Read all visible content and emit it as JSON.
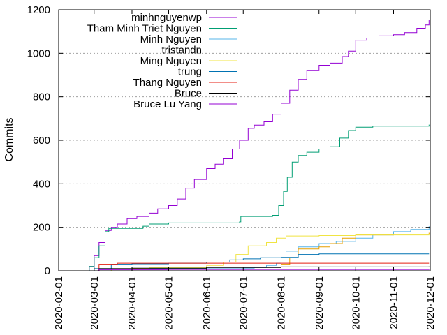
{
  "chart_data": {
    "type": "line",
    "title": "",
    "xlabel": "",
    "ylabel": "Commits",
    "ylim": [
      0,
      1200
    ],
    "yticks": [
      0,
      200,
      400,
      600,
      800,
      1000,
      1200
    ],
    "xlim": [
      "2020-02-01",
      "2020-12-01"
    ],
    "xticks": [
      "2020-02-01",
      "2020-03-01",
      "2020-04-01",
      "2020-05-01",
      "2020-06-01",
      "2020-07-01",
      "2020-08-01",
      "2020-09-01",
      "2020-10-01",
      "2020-11-01",
      "2020-12-01"
    ],
    "grid": {
      "horizontal": true,
      "vertical": false,
      "style": "dotted"
    },
    "legend": "top-left",
    "series": [
      {
        "name": "minhnguyenwp",
        "color": "#9400d3",
        "points": [
          [
            "2020-02-22",
            0
          ],
          [
            "2020-02-26",
            20
          ],
          [
            "2020-03-01",
            70
          ],
          [
            "2020-03-05",
            130
          ],
          [
            "2020-03-10",
            185
          ],
          [
            "2020-03-15",
            200
          ],
          [
            "2020-03-20",
            215
          ],
          [
            "2020-03-28",
            240
          ],
          [
            "2020-04-05",
            250
          ],
          [
            "2020-04-15",
            265
          ],
          [
            "2020-04-22",
            285
          ],
          [
            "2020-05-01",
            300
          ],
          [
            "2020-05-08",
            330
          ],
          [
            "2020-05-15",
            380
          ],
          [
            "2020-05-22",
            420
          ],
          [
            "2020-06-01",
            470
          ],
          [
            "2020-06-08",
            490
          ],
          [
            "2020-06-15",
            515
          ],
          [
            "2020-06-22",
            560
          ],
          [
            "2020-06-28",
            600
          ],
          [
            "2020-07-05",
            655
          ],
          [
            "2020-07-10",
            670
          ],
          [
            "2020-07-18",
            685
          ],
          [
            "2020-07-25",
            720
          ],
          [
            "2020-08-01",
            770
          ],
          [
            "2020-08-08",
            830
          ],
          [
            "2020-08-15",
            880
          ],
          [
            "2020-08-22",
            920
          ],
          [
            "2020-09-01",
            945
          ],
          [
            "2020-09-10",
            955
          ],
          [
            "2020-09-20",
            985
          ],
          [
            "2020-09-25",
            1010
          ],
          [
            "2020-10-01",
            1060
          ],
          [
            "2020-10-10",
            1070
          ],
          [
            "2020-10-20",
            1080
          ],
          [
            "2020-11-01",
            1085
          ],
          [
            "2020-11-10",
            1095
          ],
          [
            "2020-11-20",
            1115
          ],
          [
            "2020-11-27",
            1130
          ],
          [
            "2020-11-30",
            1155
          ]
        ]
      },
      {
        "name": "Tham Minh Triet Nguyen",
        "color": "#009e73",
        "points": [
          [
            "2020-02-22",
            0
          ],
          [
            "2020-02-26",
            20
          ],
          [
            "2020-03-01",
            60
          ],
          [
            "2020-03-05",
            115
          ],
          [
            "2020-03-10",
            180
          ],
          [
            "2020-03-13",
            195
          ],
          [
            "2020-04-01",
            195
          ],
          [
            "2020-04-10",
            205
          ],
          [
            "2020-04-15",
            215
          ],
          [
            "2020-05-01",
            220
          ],
          [
            "2020-06-01",
            220
          ],
          [
            "2020-06-28",
            225
          ],
          [
            "2020-06-29",
            250
          ],
          [
            "2020-07-25",
            255
          ],
          [
            "2020-07-30",
            300
          ],
          [
            "2020-08-03",
            365
          ],
          [
            "2020-08-06",
            430
          ],
          [
            "2020-08-10",
            500
          ],
          [
            "2020-08-15",
            530
          ],
          [
            "2020-08-22",
            545
          ],
          [
            "2020-09-01",
            560
          ],
          [
            "2020-09-10",
            570
          ],
          [
            "2020-09-18",
            610
          ],
          [
            "2020-09-25",
            645
          ],
          [
            "2020-10-01",
            660
          ],
          [
            "2020-10-15",
            665
          ],
          [
            "2020-11-01",
            665
          ],
          [
            "2020-11-30",
            672
          ]
        ]
      },
      {
        "name": "Minh Nguyen",
        "color": "#56b4e9",
        "points": [
          [
            "2020-03-01",
            0
          ],
          [
            "2020-03-15",
            10
          ],
          [
            "2020-07-01",
            12
          ],
          [
            "2020-07-10",
            15
          ],
          [
            "2020-07-20",
            25
          ],
          [
            "2020-07-28",
            35
          ],
          [
            "2020-08-01",
            60
          ],
          [
            "2020-08-05",
            90
          ],
          [
            "2020-08-15",
            110
          ],
          [
            "2020-09-01",
            125
          ],
          [
            "2020-09-15",
            135
          ],
          [
            "2020-10-01",
            150
          ],
          [
            "2020-10-15",
            165
          ],
          [
            "2020-11-01",
            180
          ],
          [
            "2020-11-15",
            190
          ],
          [
            "2020-11-30",
            205
          ]
        ]
      },
      {
        "name": "tristandn",
        "color": "#e69f00",
        "points": [
          [
            "2020-07-28",
            0
          ],
          [
            "2020-08-01",
            30
          ],
          [
            "2020-08-08",
            60
          ],
          [
            "2020-08-15",
            100
          ],
          [
            "2020-09-01",
            110
          ],
          [
            "2020-09-10",
            125
          ],
          [
            "2020-09-20",
            150
          ],
          [
            "2020-10-01",
            165
          ],
          [
            "2020-10-15",
            165
          ],
          [
            "2020-11-01",
            168
          ],
          [
            "2020-11-30",
            175
          ]
        ]
      },
      {
        "name": "Ming Nguyen",
        "color": "#f0e442",
        "points": [
          [
            "2020-03-01",
            0
          ],
          [
            "2020-03-15",
            10
          ],
          [
            "2020-04-15",
            15
          ],
          [
            "2020-06-01",
            25
          ],
          [
            "2020-06-15",
            40
          ],
          [
            "2020-06-25",
            75
          ],
          [
            "2020-07-05",
            115
          ],
          [
            "2020-07-20",
            130
          ],
          [
            "2020-07-28",
            150
          ],
          [
            "2020-08-05",
            160
          ],
          [
            "2020-09-01",
            162
          ],
          [
            "2020-10-01",
            165
          ],
          [
            "2020-11-01",
            165
          ],
          [
            "2020-11-30",
            168
          ]
        ]
      },
      {
        "name": "trung",
        "color": "#0072b2",
        "points": [
          [
            "2020-02-24",
            0
          ],
          [
            "2020-03-01",
            10
          ],
          [
            "2020-03-15",
            30
          ],
          [
            "2020-04-01",
            32
          ],
          [
            "2020-05-01",
            35
          ],
          [
            "2020-06-01",
            40
          ],
          [
            "2020-06-20",
            50
          ],
          [
            "2020-07-01",
            55
          ],
          [
            "2020-07-15",
            60
          ],
          [
            "2020-08-01",
            62
          ],
          [
            "2020-08-15",
            75
          ],
          [
            "2020-09-01",
            78
          ],
          [
            "2020-11-30",
            78
          ]
        ]
      },
      {
        "name": "Thang Nguyen",
        "color": "#e51e10",
        "points": [
          [
            "2020-02-24",
            0
          ],
          [
            "2020-03-05",
            30
          ],
          [
            "2020-03-20",
            35
          ],
          [
            "2020-11-30",
            35
          ]
        ]
      },
      {
        "name": "Bruce",
        "color": "#000000",
        "points": [
          [
            "2020-02-24",
            0
          ],
          [
            "2020-03-05",
            10
          ],
          [
            "2020-04-01",
            12
          ],
          [
            "2020-06-01",
            15
          ],
          [
            "2020-08-01",
            18
          ],
          [
            "2020-11-30",
            20
          ]
        ]
      },
      {
        "name": "Bruce Lu Yang",
        "color": "#9400d3",
        "points": [
          [
            "2020-02-24",
            0
          ],
          [
            "2020-03-05",
            5
          ],
          [
            "2020-05-01",
            6
          ],
          [
            "2020-11-30",
            8
          ]
        ]
      }
    ]
  }
}
